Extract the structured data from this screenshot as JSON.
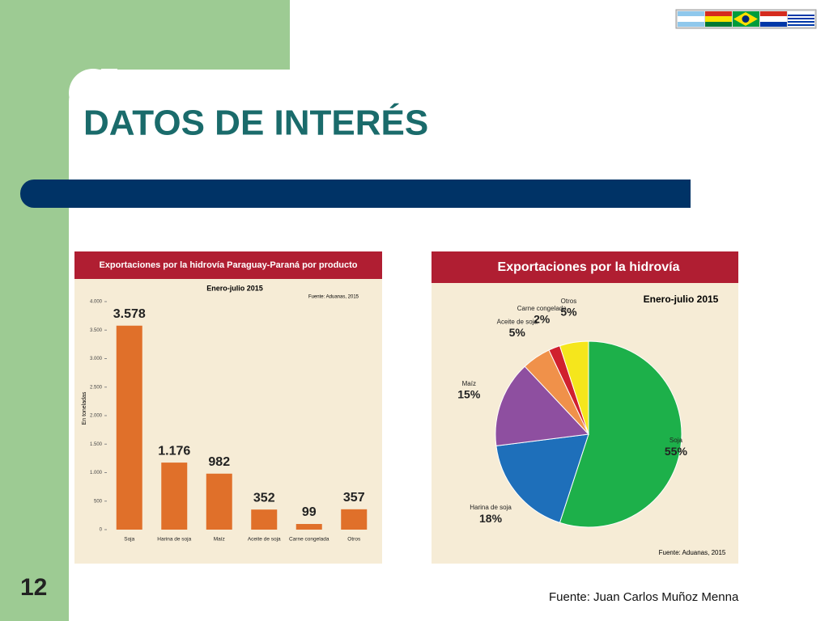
{
  "title": "DATOS DE INTERÉS",
  "page_number": "12",
  "footer": "Fuente: Juan Carlos Muñoz Menna",
  "chart_data": [
    {
      "type": "bar",
      "title": "Exportaciones por la hidrovía Paraguay-Paraná por producto",
      "subtitle": "Enero-julio 2015",
      "source": "Fuente: Aduanas, 2015",
      "y_label": "En toneladas",
      "categories": [
        "Soja",
        "Harina de soja",
        "Maíz",
        "Aceite de soja",
        "Carne congelada",
        "Otros"
      ],
      "values": [
        3578,
        1176,
        982,
        352,
        99,
        357
      ],
      "value_labels": [
        "3.578",
        "1.176",
        "982",
        "352",
        "99",
        "357"
      ],
      "color": "#e0702a",
      "ylim": [
        0,
        4000
      ],
      "yticks": [
        0,
        500,
        {
          "value": 1000,
          "label": "1.000"
        },
        {
          "value": 1500,
          "label": "1.500"
        },
        {
          "value": 2000,
          "label": "2.000"
        },
        {
          "value": 2500,
          "label": "2.500"
        },
        {
          "value": 3000,
          "label": "3.000"
        },
        {
          "value": 3500,
          "label": "3.500"
        },
        {
          "value": 4000,
          "label": "4.000"
        }
      ]
    },
    {
      "type": "pie",
      "title": "Exportaciones por la hidrovía",
      "subtitle": "Enero-julio 2015",
      "source": "Fuente: Aduanas, 2015",
      "categories": [
        "Soja",
        "Harina de soja",
        "Maíz",
        "Aceite de soja",
        "Carne congelada",
        "Otros"
      ],
      "values": [
        55,
        18,
        15,
        5,
        2,
        5
      ],
      "value_labels": [
        "55%",
        "18%",
        "15%",
        "5%",
        "2%",
        "5%"
      ],
      "colors": [
        "#1db04a",
        "#1e6fba",
        "#8e4fa0",
        "#f0914a",
        "#d0202e",
        "#f5e61c"
      ]
    }
  ]
}
